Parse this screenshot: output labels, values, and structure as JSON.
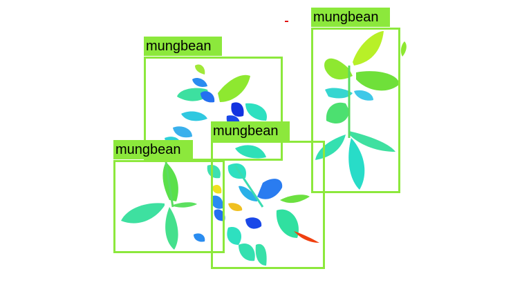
{
  "detections": [
    {
      "label": "mungbean",
      "color": "#8ce83c"
    },
    {
      "label": "mungbean",
      "color": "#8ce83c"
    },
    {
      "label": "mungbean",
      "color": "#8ce83c"
    },
    {
      "label": "mungbean",
      "color": "#8ce83c"
    }
  ],
  "palette": {
    "background": "#ffffff",
    "box_color": "#8ce83c",
    "leaf_green": "#6fe03a",
    "leaf_cyan": "#2fe0c0",
    "leaf_blue": "#2a8cf0",
    "leaf_dark_blue": "#1232e0",
    "leaf_yellow": "#f0e020",
    "leaf_red": "#f04010"
  }
}
